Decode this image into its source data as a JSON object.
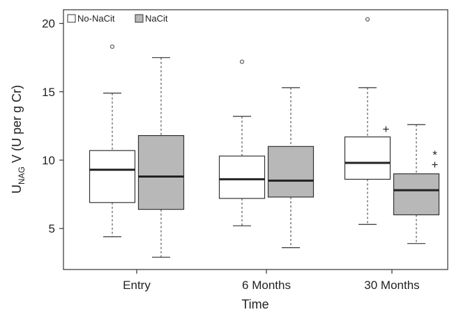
{
  "chart_data": {
    "type": "boxplot",
    "title": "",
    "xlabel": "Time",
    "ylabel_parts": [
      "U",
      "NAG",
      " V (U per g Cr)"
    ],
    "ylim": [
      2.0,
      21.0
    ],
    "yticks": [
      5,
      10,
      15,
      20
    ],
    "grid": false,
    "legend_position": "top-left",
    "categories": [
      "Entry",
      "6 Months",
      "30 Months"
    ],
    "series": [
      {
        "name": "No-NaCit",
        "color": "#ffffff",
        "boxes": [
          {
            "whisker_low": 4.4,
            "q1": 6.9,
            "median": 9.3,
            "q3": 10.7,
            "whisker_high": 14.9,
            "outliers": [
              18.3
            ]
          },
          {
            "whisker_low": 5.2,
            "q1": 7.2,
            "median": 8.6,
            "q3": 10.3,
            "whisker_high": 13.2,
            "outliers": [
              17.2
            ]
          },
          {
            "whisker_low": 5.3,
            "q1": 8.6,
            "median": 9.8,
            "q3": 11.7,
            "whisker_high": 15.3,
            "outliers": [
              20.3
            ]
          }
        ]
      },
      {
        "name": "NaCit",
        "color": "#b8b8b8",
        "boxes": [
          {
            "whisker_low": 2.9,
            "q1": 6.4,
            "median": 8.8,
            "q3": 11.8,
            "whisker_high": 17.5,
            "outliers": []
          },
          {
            "whisker_low": 3.6,
            "q1": 7.3,
            "median": 8.5,
            "q3": 11.0,
            "whisker_high": 15.3,
            "outliers": []
          },
          {
            "whisker_low": 3.9,
            "q1": 6.0,
            "median": 7.8,
            "q3": 9.0,
            "whisker_high": 12.6,
            "outliers": []
          }
        ]
      }
    ],
    "annotations": [
      {
        "text": "+",
        "category": 2,
        "series": 0,
        "y": 12.3
      },
      {
        "text": "*",
        "category": 2,
        "series": 1,
        "y": 10.4
      },
      {
        "text": "+",
        "category": 2,
        "series": 1,
        "y": 9.7
      }
    ]
  }
}
